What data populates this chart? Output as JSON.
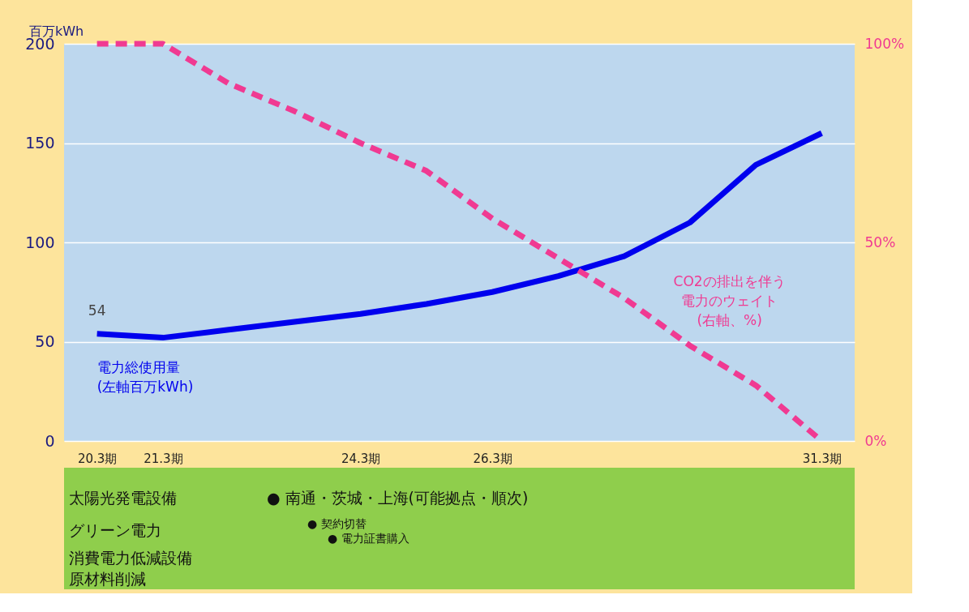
{
  "chart_data": {
    "type": "line",
    "ylabel": "百万kWh",
    "categories": [
      "20.3期",
      "21.3期",
      null,
      null,
      "24.3期",
      null,
      "26.3期",
      null,
      null,
      null,
      null,
      "31.3期"
    ],
    "series": [
      {
        "name": "電力総使用量(左軸百万kWh)",
        "color": "#0000ee",
        "line_style": "solid",
        "values": [
          54,
          52,
          56,
          60,
          64,
          69,
          75,
          83,
          93,
          110,
          139,
          155
        ],
        "value_labels": [
          "54",
          null,
          null,
          null,
          null,
          null,
          null,
          null,
          null,
          null,
          null,
          null
        ]
      },
      {
        "name": "CO2の排出を伴う電力のウェイト(右軸、%)",
        "color": "#f03a92",
        "axis": "y2",
        "line_style": "dashed",
        "values": [
          100,
          100,
          90,
          83,
          75,
          68,
          56,
          46,
          36,
          24,
          14,
          0
        ]
      }
    ],
    "ylim": [
      0,
      200
    ],
    "yticks": [
      0,
      50,
      100,
      150,
      200
    ],
    "y2lim": [
      0,
      100
    ],
    "y2ticks": [
      {
        "value": 0,
        "label": "0%"
      },
      {
        "value": 50,
        "label": "50%"
      },
      {
        "value": 100,
        "label": "100%"
      }
    ],
    "grid": "y",
    "annotations": [
      "太陽光発電設備",
      "● 南通・茨城・上海(可能拠点・順次)",
      "グリーン電力",
      "● 契約切替",
      "● 電力証書購入",
      "消費電力低減設備",
      "原材料削減"
    ]
  }
}
